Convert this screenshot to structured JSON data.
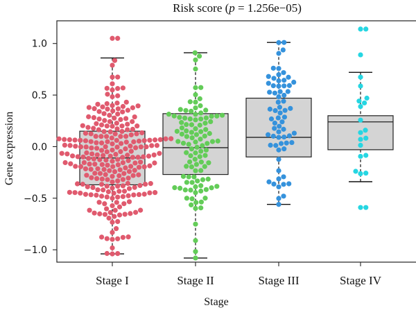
{
  "chart_data": {
    "type": "box",
    "title": {
      "prefix": "Risk score (",
      "p_symbol": "p",
      "suffix": " = 1.256e−05)"
    },
    "xlabel": "Stage",
    "ylabel": "Gene expression",
    "ylim": [
      -1.12,
      1.22
    ],
    "yticks": [
      1.0,
      0.5,
      0.0,
      -0.5,
      -1.0
    ],
    "ytick_labels": [
      "1.0",
      "0.5",
      "0.0",
      "−0.5",
      "−1.0"
    ],
    "grid": false,
    "categories": [
      "Stage I",
      "Stage II",
      "Stage III",
      "Stage IV"
    ],
    "groups": [
      {
        "name": "Stage I",
        "color": "#e05a6e",
        "n": 260,
        "min": -1.04,
        "q1": -0.37,
        "median": -0.11,
        "q3": 0.15,
        "max": 0.86,
        "outliers": [
          1.05
        ],
        "range": [
          -1.04,
          1.05
        ]
      },
      {
        "name": "Stage II",
        "color": "#63cc58",
        "n": 105,
        "min": -1.08,
        "q1": -0.27,
        "median": -0.01,
        "q3": 0.32,
        "max": 0.91,
        "outliers": [],
        "range": [
          -1.08,
          0.91
        ]
      },
      {
        "name": "Stage III",
        "color": "#3592dc",
        "n": 65,
        "min": -0.56,
        "q1": -0.1,
        "median": 0.09,
        "q3": 0.47,
        "max": 1.01,
        "outliers": [],
        "range": [
          -0.56,
          1.01
        ]
      },
      {
        "name": "Stage IV",
        "color": "#26d6e2",
        "n": 20,
        "min": -0.34,
        "q1": -0.03,
        "median": 0.24,
        "q3": 0.3,
        "max": 0.72,
        "outliers": [
          1.14,
          0.89,
          -0.59
        ],
        "range": [
          -0.59,
          1.14
        ]
      }
    ]
  }
}
